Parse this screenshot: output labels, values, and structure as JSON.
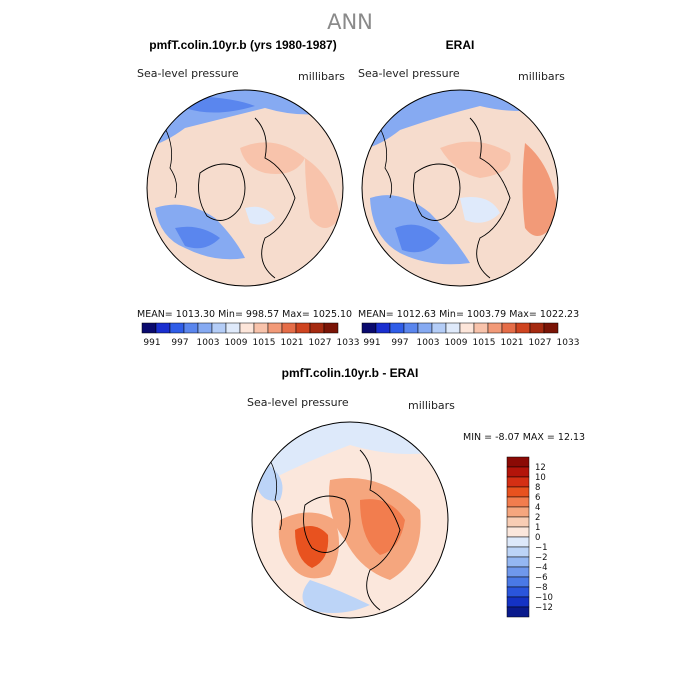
{
  "figure": {
    "title": "ANN"
  },
  "panels": {
    "model": {
      "title": "pmfT.colin.10yr.b (yrs 1980-1987)",
      "variable": "Sea-level pressure",
      "units": "millibars",
      "stats": "MEAN= 1013.30   Min= 998.57   Max= 1025.10"
    },
    "obs": {
      "title": "ERAI",
      "variable": "Sea-level pressure",
      "units": "millibars",
      "stats": "MEAN= 1012.63   Min= 1003.79   Max= 1022.23"
    },
    "diff": {
      "title": "pmfT.colin.10yr.b - ERAI",
      "variable": "Sea-level pressure",
      "units": "millibars",
      "stats": "MIN =   -8.07  MAX =   12.13"
    }
  },
  "chart_data": [
    {
      "type": "heatmap",
      "title": "pmfT.colin.10yr.b (yrs 1980-1987)",
      "variable": "Sea-level pressure",
      "units": "millibars",
      "projection": "north-polar-stereographic",
      "stats": {
        "mean": 1013.3,
        "min": 998.57,
        "max": 1025.1
      },
      "colorbar": {
        "orientation": "horizontal",
        "tick_labels": [
          "991",
          "997",
          "1003",
          "1009",
          "1015",
          "1021",
          "1027",
          "1033"
        ],
        "colors": [
          "#0a0a6e",
          "#1a2fd0",
          "#2f5de8",
          "#5a86ee",
          "#86aaf2",
          "#b4cdf7",
          "#dfeafb",
          "#fde6da",
          "#f8c3ab",
          "#f29a78",
          "#e56d48",
          "#cf4420",
          "#a52a10",
          "#7a1406"
        ]
      }
    },
    {
      "type": "heatmap",
      "title": "ERAI",
      "variable": "Sea-level pressure",
      "units": "millibars",
      "projection": "north-polar-stereographic",
      "stats": {
        "mean": 1012.63,
        "min": 1003.79,
        "max": 1022.23
      },
      "colorbar": {
        "orientation": "horizontal",
        "tick_labels": [
          "991",
          "997",
          "1003",
          "1009",
          "1015",
          "1021",
          "1027",
          "1033"
        ],
        "colors": [
          "#0a0a6e",
          "#1a2fd0",
          "#2f5de8",
          "#5a86ee",
          "#86aaf2",
          "#b4cdf7",
          "#dfeafb",
          "#fde6da",
          "#f8c3ab",
          "#f29a78",
          "#e56d48",
          "#cf4420",
          "#a52a10",
          "#7a1406"
        ]
      }
    },
    {
      "type": "heatmap",
      "title": "pmfT.colin.10yr.b - ERAI",
      "variable": "Sea-level pressure",
      "units": "millibars",
      "projection": "north-polar-stereographic",
      "stats": {
        "min": -8.07,
        "max": 12.13
      },
      "colorbar": {
        "orientation": "vertical",
        "tick_labels": [
          "12",
          "10",
          "8",
          "6",
          "4",
          "2",
          "1",
          "0",
          "−1",
          "−2",
          "−4",
          "−6",
          "−8",
          "−10",
          "−12"
        ],
        "colors": [
          "#8b0a05",
          "#b3140a",
          "#d42f14",
          "#e8521f",
          "#f27d4e",
          "#f5a67e",
          "#f8cdb4",
          "#fbe7dc",
          "#dde9fa",
          "#bcd4f7",
          "#94b7f2",
          "#6f98ec",
          "#4a79e6",
          "#2a55dc",
          "#1432c4",
          "#0a1a8c"
        ]
      }
    }
  ],
  "colors": {
    "positive": "#f29a78",
    "negative": "#6f98ec",
    "neutral": "#f5eeea",
    "coast": "#000000"
  }
}
